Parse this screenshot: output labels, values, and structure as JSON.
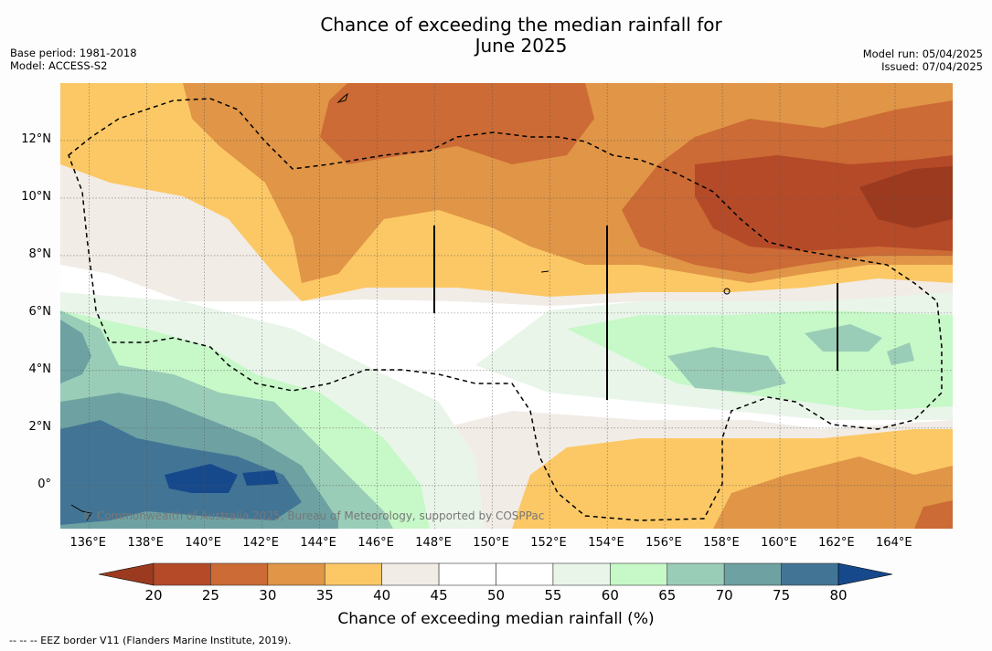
{
  "title": {
    "line1": "Chance of exceeding the median rainfall for",
    "line2": "June 2025"
  },
  "meta": {
    "base_period": "Base period: 1981-2018",
    "model": "Model: ACCESS-S2",
    "model_run": "Model run: 05/04/2025",
    "issued": "Issued: 07/04/2025"
  },
  "map": {
    "lon_labels": [
      "136°E",
      "138°E",
      "140°E",
      "142°E",
      "144°E",
      "146°E",
      "148°E",
      "150°E",
      "152°E",
      "154°E",
      "156°E",
      "158°E",
      "160°E",
      "162°E",
      "164°E"
    ],
    "lat_labels": [
      "12°N",
      "10°N",
      "8°N",
      "6°N",
      "4°N",
      "2°N",
      "0°"
    ],
    "lon_range": [
      135,
      166
    ],
    "lat_range": [
      -1.5,
      14
    ],
    "credit": "© Commonwealth of Australia 2025, Bureau of Meteorology, supported by COSPPac"
  },
  "colorbar": {
    "title": "Chance of exceeding median rainfall (%)",
    "labels": [
      "20",
      "25",
      "30",
      "35",
      "40",
      "45",
      "50",
      "55",
      "60",
      "65",
      "70",
      "75",
      "80"
    ],
    "colors": [
      "#9c3a1f",
      "#b54a28",
      "#cc6b35",
      "#e09547",
      "#fcc865",
      "#f1ece6",
      "#ffffff",
      "#ffffff",
      "#eaf5ea",
      "#c7f8c8",
      "#9acdb8",
      "#6ea2a2",
      "#427595",
      "#16498c"
    ]
  },
  "legend": {
    "eez": "--  --  -- EEZ border V11 (Flanders Marine Institute, 2019)."
  }
}
